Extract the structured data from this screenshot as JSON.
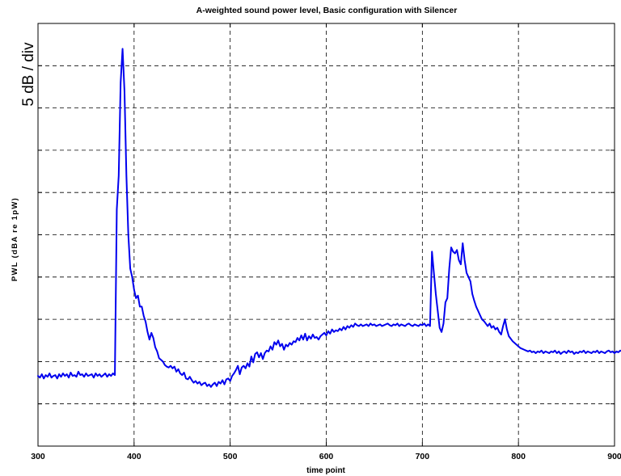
{
  "chart_data": {
    "type": "line",
    "title": "A-weighted sound power level, Basic configuration with Silencer",
    "xlabel": "time point",
    "ylabel": "PWL (dBA re 1pW)",
    "annotation": "5 dB / div",
    "xlim": [
      300,
      900
    ],
    "ylim": [
      0,
      50
    ],
    "xticks": [
      300,
      400,
      500,
      600,
      700,
      800,
      900
    ],
    "xtick_labels": [
      "300",
      "400",
      "500",
      "600",
      "700",
      "800",
      "900"
    ],
    "ytick_step": 5,
    "grid": true,
    "line_color": "#0000ee",
    "series": [
      {
        "x_start": 300,
        "x_step": 2,
        "values": [
          8.3,
          8.1,
          8.5,
          8.0,
          8.4,
          8.2,
          8.6,
          8.1,
          8.3,
          8.4,
          8.0,
          8.5,
          8.2,
          8.6,
          8.3,
          8.5,
          8.1,
          8.7,
          8.3,
          8.4,
          8.2,
          8.8,
          8.4,
          8.5,
          8.2,
          8.6,
          8.3,
          8.4,
          8.5,
          8.1,
          8.6,
          8.3,
          8.5,
          8.2,
          8.4,
          8.6,
          8.2,
          8.5,
          8.3,
          8.6,
          8.4,
          28,
          32,
          43,
          47,
          42,
          32,
          25,
          21,
          20,
          18.5,
          17.5,
          17.8,
          16.5,
          16.5,
          15.4,
          14.7,
          13.5,
          12.6,
          13.4,
          12.8,
          11.7,
          11.2,
          10.4,
          10.2,
          10.0,
          9.6,
          9.4,
          9.3,
          9.5,
          9.2,
          9.4,
          8.8,
          9.1,
          8.6,
          8.4,
          8.7,
          8.0,
          7.9,
          8.2,
          7.8,
          7.5,
          7.7,
          7.4,
          7.6,
          7.2,
          7.4,
          7.5,
          7.1,
          7.3,
          7.0,
          7.3,
          7.5,
          7.1,
          7.6,
          7.4,
          7.8,
          7.3,
          7.9,
          8.0,
          7.7,
          8.3,
          8.6,
          9.0,
          9.5,
          8.5,
          9.3,
          9.5,
          9.2,
          9.8,
          9.4,
          10.6,
          9.9,
          10.9,
          11.1,
          10.5,
          11.0,
          10.3,
          11.0,
          11.3,
          11.2,
          11.8,
          11.4,
          12.3,
          12.0,
          12.5,
          11.8,
          12.1,
          11.4,
          12.0,
          11.8,
          12.2,
          12.0,
          12.4,
          12.3,
          12.8,
          12.5,
          13.1,
          12.6,
          13.3,
          12.5,
          13.0,
          12.7,
          13.2,
          12.8,
          12.9,
          12.6,
          13.0,
          13.2,
          13.4,
          13.1,
          13.6,
          13.3,
          13.8,
          13.5,
          13.7,
          13.6,
          13.9,
          13.7,
          14.1,
          13.8,
          14.2,
          14.0,
          14.3,
          14.1,
          14.5,
          14.3,
          14.2,
          14.4,
          14.2,
          14.3,
          14.4,
          14.2,
          14.5,
          14.3,
          14.4,
          14.2,
          14.3,
          14.4,
          14.2,
          14.3,
          14.4,
          14.5,
          14.3,
          14.2,
          14.4,
          14.3,
          14.5,
          14.2,
          14.4,
          14.3,
          14.2,
          14.4,
          14.5,
          14.3,
          14.2,
          14.4,
          14.3,
          14.2,
          14.4,
          14.3,
          14.5,
          14.2,
          14.4,
          14.2,
          23.0,
          20.5,
          18.0,
          16.0,
          14.0,
          13.5,
          14.5,
          17.0,
          17.5,
          21.0,
          23.5,
          23.0,
          22.8,
          23.2,
          22.0,
          21.5,
          24.0,
          22.0,
          20.5,
          20.0,
          19.5,
          18.0,
          17.2,
          16.5,
          16.0,
          15.5,
          15.0,
          14.8,
          14.5,
          14.2,
          14.5,
          14.0,
          14.2,
          13.8,
          14.0,
          13.5,
          13.2,
          14.2,
          15.0,
          13.8,
          13.0,
          12.7,
          12.4,
          12.2,
          12.0,
          11.8,
          11.6,
          11.5,
          11.4,
          11.3,
          11.2,
          11.3,
          11.1,
          11.2,
          11.0,
          11.2,
          11.1,
          11.3,
          11.0,
          11.2,
          11.1,
          11.0,
          11.2,
          11.1,
          11.3,
          11.0,
          11.2,
          10.9,
          11.1,
          11.2,
          11.0,
          11.3,
          11.1,
          11.2,
          10.9,
          11.1,
          11.0,
          11.2,
          11.1,
          11.3,
          11.0,
          11.2,
          11.1,
          11.0,
          11.2,
          11.1,
          11.3,
          11.0,
          11.2,
          11.1,
          11.0,
          11.2,
          11.3,
          11.1,
          11.2,
          11.0,
          11.2,
          11.1,
          11.3,
          11.2,
          11.4
        ]
      }
    ]
  }
}
